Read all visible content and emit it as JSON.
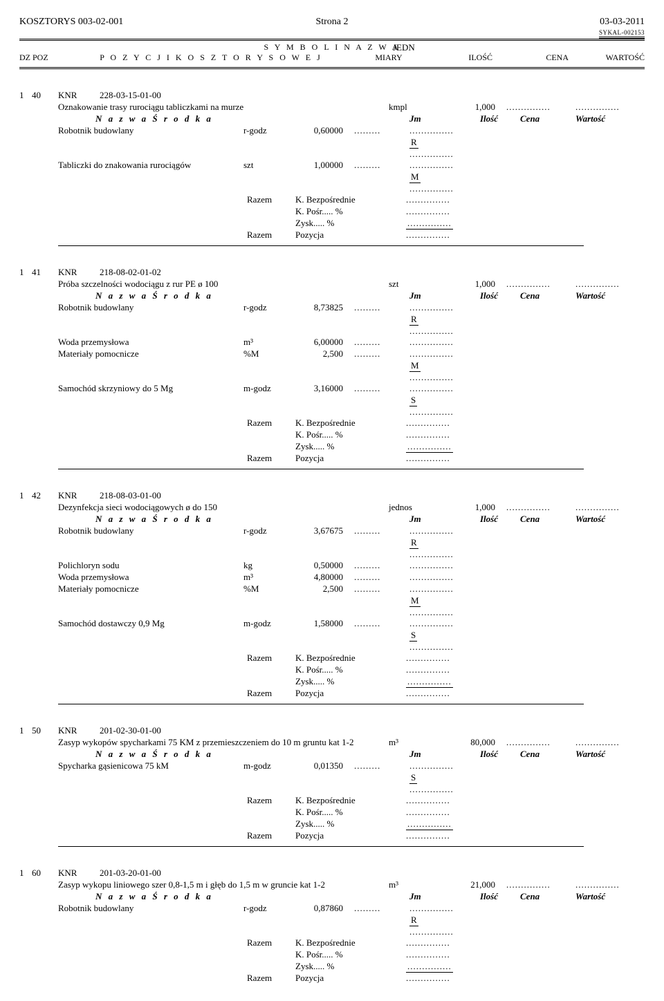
{
  "header": {
    "kosztorys": "KOSZTORYS  003-02-001",
    "page": "Strona 2",
    "date": "03-03-2011",
    "sykal": "SYKAL-002153"
  },
  "colhead": {
    "symbol_nazwa": "S Y M B O L   I   N A Z W A",
    "dzpoz": "DZ  POZ",
    "pozycji": "P O Z Y C J I    K O S Z T O R Y S O W E J",
    "jedn": "JEDN",
    "miary": "MIARY",
    "ilosc": "ILOŚĆ",
    "cena": "CENA",
    "wartosc": "WARTOŚĆ"
  },
  "labels": {
    "nazwa_srodka": "N a z w a   Ś r o d k a",
    "jm": "Jm",
    "ilosc": "Ilość",
    "cena": "Cena",
    "wartosc": "Wartość",
    "razem": "Razem",
    "k_bezp": "K. Bezpośrednie",
    "k_posr": "K. Pośr..... %",
    "zysk": "Zysk..... %",
    "pozycja": "Pozycja",
    "dots9": ".........",
    "dots": "...............",
    "knr": "KNR",
    "R": "R",
    "M": "M",
    "S": "S"
  },
  "positions": [
    {
      "dz": "1",
      "poz": "40",
      "code": "228-03-15-01-00",
      "title": "Oznakowanie trasy rurociągu tabliczkami na murze",
      "unit": "kmpl",
      "qty": "1,000",
      "rows": [
        {
          "name": "Robotnik budowlany",
          "jm": "r-godz",
          "ilosc": "0,60000",
          "flag": "R"
        },
        {
          "name": "Tabliczki do znakowania rurociągów",
          "jm": "szt",
          "ilosc": "1,00000",
          "flag": "M"
        }
      ]
    },
    {
      "dz": "1",
      "poz": "41",
      "code": "218-08-02-01-02",
      "title": "Próba szczelności wodociągu z rur PE ø 100",
      "unit": "szt",
      "qty": "1,000",
      "rows": [
        {
          "name": "Robotnik budowlany",
          "jm": "r-godz",
          "ilosc": "8,73825",
          "flag": "R"
        },
        {
          "name": "Woda przemysłowa",
          "jm": "m³",
          "ilosc": "6,00000",
          "flag": ""
        },
        {
          "name": "Materiały pomocnicze",
          "jm": "%M",
          "ilosc": "2,500",
          "flag": "M"
        },
        {
          "name": "Samochód skrzyniowy do 5 Mg",
          "jm": "m-godz",
          "ilosc": "3,16000",
          "flag": "S"
        }
      ]
    },
    {
      "dz": "1",
      "poz": "42",
      "code": "218-08-03-01-00",
      "title": "Dezynfekcja sieci wodociągowych ø do 150",
      "unit": "jednos",
      "qty": "1,000",
      "rows": [
        {
          "name": "Robotnik budowlany",
          "jm": "r-godz",
          "ilosc": "3,67675",
          "flag": "R"
        },
        {
          "name": "Polichloryn sodu",
          "jm": "kg",
          "ilosc": "0,50000",
          "flag": ""
        },
        {
          "name": "Woda przemysłowa",
          "jm": "m³",
          "ilosc": "4,80000",
          "flag": ""
        },
        {
          "name": "Materiały pomocnicze",
          "jm": "%M",
          "ilosc": "2,500",
          "flag": "M"
        },
        {
          "name": "Samochód dostawczy 0,9 Mg",
          "jm": "m-godz",
          "ilosc": "1,58000",
          "flag": "S"
        }
      ]
    },
    {
      "dz": "1",
      "poz": "50",
      "code": "201-02-30-01-00",
      "title": "Zasyp wykopów spycharkami 75 KM z przemieszczeniem do 10 m gruntu kat 1-2",
      "unit": "m³",
      "qty": "80,000",
      "rows": [
        {
          "name": "Spycharka gąsienicowa 75 kM",
          "jm": "m-godz",
          "ilosc": "0,01350",
          "flag": "S"
        }
      ]
    },
    {
      "dz": "1",
      "poz": "60",
      "code": "201-03-20-01-00",
      "title": "Zasyp wykopu liniowego szer 0,8-1,5 m i głęb do 1,5 m w gruncie kat 1-2",
      "unit": "m³",
      "qty": "21,000",
      "rows": [
        {
          "name": "Robotnik budowlany",
          "jm": "r-godz",
          "ilosc": "0,87860",
          "flag": "R"
        }
      ],
      "no_hr": true
    }
  ]
}
